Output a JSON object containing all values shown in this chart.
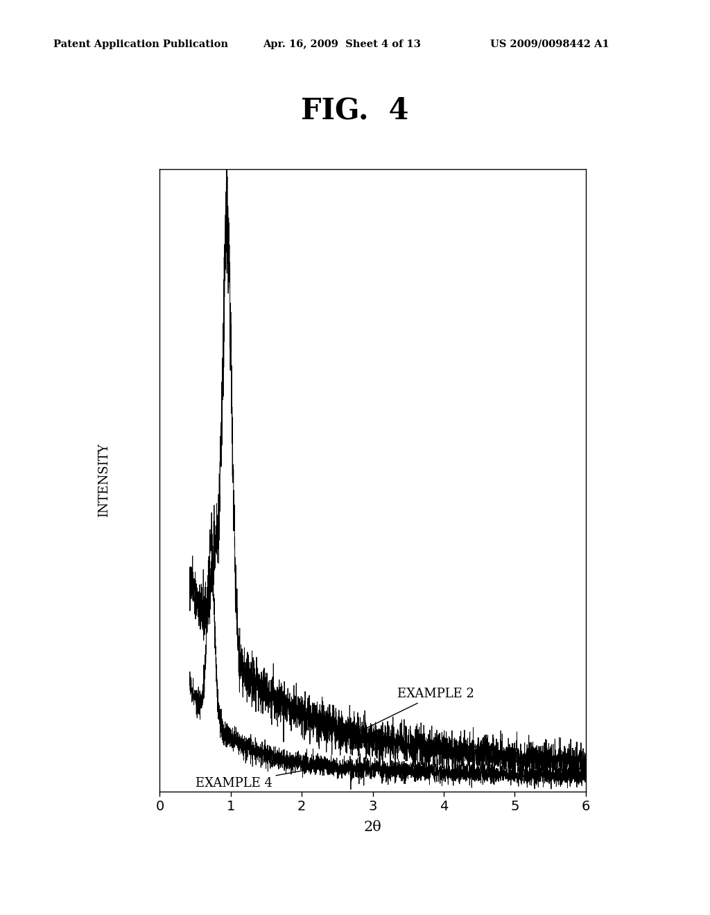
{
  "title": "FIG.  4",
  "header_left": "Patent Application Publication",
  "header_mid": "Apr. 16, 2009  Sheet 4 of 13",
  "header_right": "US 2009/0098442 A1",
  "xlabel": "2θ",
  "ylabel": "INTENSITY",
  "xlim": [
    0,
    6
  ],
  "xticks": [
    0,
    1,
    2,
    3,
    4,
    5,
    6
  ],
  "background_color": "#ffffff",
  "line_color": "#000000",
  "label_example2": "EXAMPLE 2",
  "label_example4": "EXAMPLE 4",
  "label_fontsize": 13,
  "xlabel_fontsize": 15,
  "ylabel_fontsize": 13,
  "title_fontsize": 30,
  "header_fontsize": 10.5
}
